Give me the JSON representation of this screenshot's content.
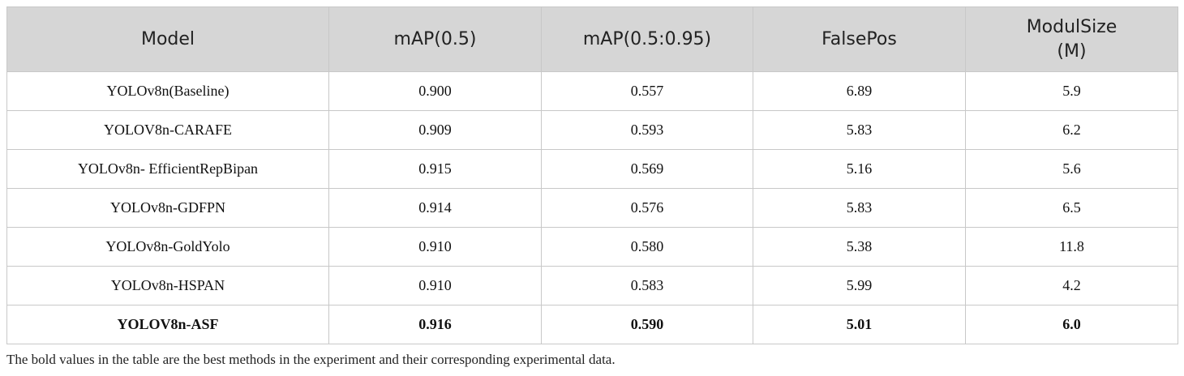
{
  "table": {
    "header": [
      "Model",
      "mAP(0.5)",
      "mAP(0.5:0.95)",
      "FalsePos",
      "ModulSize (M)"
    ],
    "rows": [
      [
        "YOLOv8n(Baseline)",
        "0.900",
        "0.557",
        "6.89",
        "5.9"
      ],
      [
        "YOLOV8n-CARAFE",
        "0.909",
        "0.593",
        "5.83",
        "6.2"
      ],
      [
        "YOLOv8n- EfficientRepBipan",
        "0.915",
        "0.569",
        "5.16",
        "5.6"
      ],
      [
        "YOLOv8n-GDFPN",
        "0.914",
        "0.576",
        "5.83",
        "6.5"
      ],
      [
        "YOLOv8n-GoldYolo",
        "0.910",
        "0.580",
        "5.38",
        "11.8"
      ],
      [
        "YOLOv8n-HSPAN",
        "0.910",
        "0.583",
        "5.99",
        "4.2"
      ],
      [
        "YOLOV8n-ASF",
        "0.916",
        "0.590",
        "5.01",
        "6.0"
      ]
    ]
  },
  "caption": "The bold values in the table are the best methods in the experiment and their corresponding experimental data."
}
